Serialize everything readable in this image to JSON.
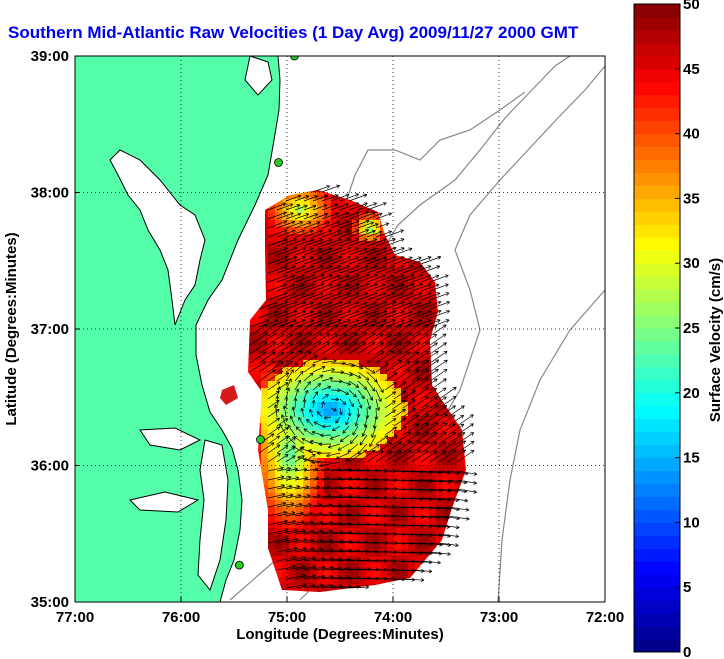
{
  "chart_data": {
    "type": "map-vector-field",
    "title": "Southern Mid-Atlantic Raw Velocities (1 Day Avg) 2009/11/27 2000 GMT",
    "xlabel": "Longitude (Degrees:Minutes)",
    "ylabel": "Latitude (Degrees:Minutes)",
    "x_range": [
      -77,
      -72
    ],
    "y_range": [
      35,
      39
    ],
    "x_ticks": [
      {
        "value": -77,
        "label": "77:00"
      },
      {
        "value": -76,
        "label": "76:00"
      },
      {
        "value": -75,
        "label": "75:00"
      },
      {
        "value": -74,
        "label": "74:00"
      },
      {
        "value": -73,
        "label": "73:00"
      },
      {
        "value": -72,
        "label": "72:00"
      }
    ],
    "y_ticks": [
      {
        "value": 39,
        "label": "39:00"
      },
      {
        "value": 38,
        "label": "38:00"
      },
      {
        "value": 37,
        "label": "37:00"
      },
      {
        "value": 36,
        "label": "36:00"
      },
      {
        "value": 35,
        "label": "35:00"
      }
    ],
    "grid": "dotted",
    "colorbar": {
      "label": "Surface Velocity (cm/s)",
      "min": 0,
      "max": 50,
      "ticks": [
        0,
        5,
        10,
        15,
        20,
        25,
        30,
        35,
        40,
        45,
        50
      ],
      "colormap": "jet"
    },
    "colors": {
      "land": "#55ffaa",
      "title": "#0000ee",
      "coast": "#000000",
      "isobath": "#888888",
      "arrow": "#000000",
      "station": "#22cc22"
    },
    "speed_field_description": "Mostly 40-50 cm/s across the domain; a slow eddy of 12-20 cm/s centred near 74:30W 36:30N; yellow 25-30 cm/s patches along the western and northern edges.",
    "stations": [
      {
        "lon": -74.93,
        "lat": 39.0
      },
      {
        "lon": -75.08,
        "lat": 38.22
      },
      {
        "lon": -75.25,
        "lat": 36.19
      },
      {
        "lon": -75.45,
        "lat": 35.27
      }
    ]
  }
}
